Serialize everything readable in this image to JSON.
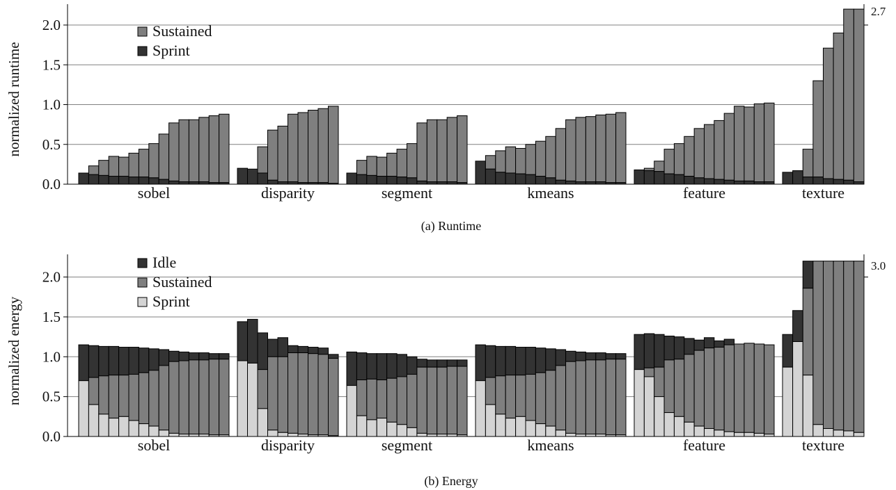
{
  "colors": {
    "sprint_runtime": "#333333",
    "sustained": "#7f7f7f",
    "idle": "#333333",
    "sprint_energy": "#d4d4d4",
    "grid": "#808080",
    "bar_stroke": "#000000"
  },
  "chart_data": [
    {
      "type": "bar",
      "stacked": true,
      "caption": "(a)  Runtime",
      "ylabel": "normalized runtime",
      "ylim": [
        0,
        2.2
      ],
      "yticks": [
        "0.0",
        "0.5",
        "1.0",
        "1.5",
        "2.0"
      ],
      "grid": true,
      "legend_position": "top-left",
      "legend": [
        "Sustained",
        "Sprint"
      ],
      "series": [
        {
          "name": "Sprint"
        },
        {
          "name": "Sustained"
        }
      ],
      "overflow_label": "2.7",
      "groups": [
        {
          "name": "sobel",
          "total": [
            0.14,
            0.23,
            0.3,
            0.35,
            0.34,
            0.39,
            0.44,
            0.51,
            0.63,
            0.77,
            0.81,
            0.81,
            0.84,
            0.86,
            0.88
          ],
          "sprint": [
            0.14,
            0.12,
            0.11,
            0.1,
            0.1,
            0.09,
            0.09,
            0.08,
            0.06,
            0.04,
            0.03,
            0.03,
            0.03,
            0.02,
            0.02
          ]
        },
        {
          "name": "disparity",
          "total": [
            0.2,
            0.19,
            0.47,
            0.68,
            0.73,
            0.88,
            0.9,
            0.93,
            0.95,
            0.98
          ],
          "sprint": [
            0.2,
            0.19,
            0.14,
            0.05,
            0.03,
            0.03,
            0.02,
            0.02,
            0.02,
            0.01
          ]
        },
        {
          "name": "segment",
          "total": [
            0.14,
            0.3,
            0.35,
            0.34,
            0.39,
            0.44,
            0.51,
            0.77,
            0.81,
            0.81,
            0.84,
            0.86
          ],
          "sprint": [
            0.14,
            0.12,
            0.11,
            0.1,
            0.1,
            0.09,
            0.08,
            0.04,
            0.03,
            0.03,
            0.03,
            0.02
          ]
        },
        {
          "name": "kmeans",
          "total": [
            0.29,
            0.36,
            0.42,
            0.47,
            0.45,
            0.5,
            0.54,
            0.6,
            0.7,
            0.81,
            0.84,
            0.85,
            0.87,
            0.88,
            0.9
          ],
          "sprint": [
            0.29,
            0.19,
            0.15,
            0.14,
            0.13,
            0.12,
            0.1,
            0.08,
            0.05,
            0.04,
            0.03,
            0.03,
            0.03,
            0.02,
            0.02
          ]
        },
        {
          "name": "feature",
          "total": [
            0.18,
            0.2,
            0.29,
            0.44,
            0.51,
            0.6,
            0.7,
            0.75,
            0.8,
            0.89,
            0.98,
            0.97,
            1.01,
            1.02
          ],
          "sprint": [
            0.18,
            0.17,
            0.16,
            0.13,
            0.12,
            0.1,
            0.08,
            0.07,
            0.06,
            0.05,
            0.04,
            0.04,
            0.03,
            0.03
          ]
        },
        {
          "name": "texture",
          "total": [
            0.15,
            0.17,
            0.44,
            1.3,
            1.71,
            1.9,
            2.7,
            2.7
          ],
          "sprint": [
            0.15,
            0.17,
            0.09,
            0.09,
            0.07,
            0.06,
            0.05,
            0.03
          ]
        }
      ]
    },
    {
      "type": "bar",
      "stacked": true,
      "caption": "(b)  Energy",
      "ylabel": "normalized energy",
      "ylim": [
        0,
        2.2
      ],
      "yticks": [
        "0.0",
        "0.5",
        "1.0",
        "1.5",
        "2.0"
      ],
      "grid": true,
      "legend_position": "top-left",
      "legend": [
        "Idle",
        "Sustained",
        "Sprint"
      ],
      "series": [
        {
          "name": "Sprint"
        },
        {
          "name": "Sustained"
        },
        {
          "name": "Idle"
        }
      ],
      "overflow_label": "3.0",
      "groups": [
        {
          "name": "sobel",
          "total": [
            1.15,
            1.14,
            1.13,
            1.13,
            1.12,
            1.12,
            1.11,
            1.1,
            1.09,
            1.07,
            1.06,
            1.05,
            1.05,
            1.04,
            1.04
          ],
          "sprint": [
            0.7,
            0.4,
            0.28,
            0.23,
            0.25,
            0.2,
            0.16,
            0.13,
            0.08,
            0.04,
            0.03,
            0.03,
            0.03,
            0.02,
            0.02
          ],
          "sustained": [
            0.0,
            0.34,
            0.48,
            0.54,
            0.52,
            0.58,
            0.64,
            0.7,
            0.81,
            0.9,
            0.92,
            0.93,
            0.93,
            0.95,
            0.95
          ]
        },
        {
          "name": "disparity",
          "total": [
            1.44,
            1.47,
            1.3,
            1.22,
            1.24,
            1.14,
            1.13,
            1.12,
            1.11,
            1.03
          ],
          "sprint": [
            0.95,
            0.92,
            0.35,
            0.08,
            0.05,
            0.04,
            0.03,
            0.02,
            0.02,
            0.01
          ],
          "sustained": [
            0.0,
            0.0,
            0.49,
            0.92,
            0.95,
            1.01,
            1.02,
            1.02,
            1.01,
            0.97
          ]
        },
        {
          "name": "segment",
          "total": [
            1.06,
            1.05,
            1.04,
            1.04,
            1.04,
            1.03,
            1.0,
            0.97,
            0.96,
            0.96,
            0.96,
            0.96
          ],
          "sprint": [
            0.64,
            0.26,
            0.21,
            0.23,
            0.18,
            0.15,
            0.11,
            0.04,
            0.03,
            0.03,
            0.03,
            0.02
          ],
          "sustained": [
            0.0,
            0.45,
            0.51,
            0.48,
            0.55,
            0.6,
            0.67,
            0.83,
            0.84,
            0.84,
            0.85,
            0.86
          ]
        },
        {
          "name": "kmeans",
          "total": [
            1.15,
            1.14,
            1.13,
            1.13,
            1.12,
            1.12,
            1.11,
            1.1,
            1.09,
            1.07,
            1.06,
            1.05,
            1.05,
            1.04,
            1.04
          ],
          "sprint": [
            0.7,
            0.4,
            0.28,
            0.23,
            0.25,
            0.2,
            0.16,
            0.13,
            0.08,
            0.04,
            0.03,
            0.03,
            0.03,
            0.02,
            0.02
          ],
          "sustained": [
            0.0,
            0.34,
            0.48,
            0.54,
            0.52,
            0.58,
            0.64,
            0.7,
            0.81,
            0.9,
            0.92,
            0.93,
            0.93,
            0.95,
            0.95
          ]
        },
        {
          "name": "feature",
          "total": [
            1.28,
            1.29,
            1.28,
            1.26,
            1.25,
            1.23,
            1.21,
            1.24,
            1.2,
            1.22,
            1.16,
            1.17,
            1.16,
            1.15
          ],
          "sprint": [
            0.84,
            0.75,
            0.5,
            0.3,
            0.25,
            0.18,
            0.13,
            0.1,
            0.08,
            0.06,
            0.05,
            0.05,
            0.04,
            0.03
          ],
          "sustained": [
            0.0,
            0.11,
            0.37,
            0.66,
            0.72,
            0.85,
            0.95,
            1.01,
            1.04,
            1.09,
            1.11,
            1.12,
            1.12,
            1.12
          ]
        },
        {
          "name": "texture",
          "total": [
            1.28,
            1.58,
            2.25,
            2.7,
            2.7,
            2.7,
            2.7,
            3.0
          ],
          "sprint": [
            0.87,
            1.19,
            0.77,
            0.15,
            0.1,
            0.08,
            0.07,
            0.05
          ],
          "sustained": [
            0.0,
            0.0,
            1.09,
            2.05,
            2.55,
            2.6,
            2.6,
            2.95
          ]
        }
      ]
    }
  ]
}
